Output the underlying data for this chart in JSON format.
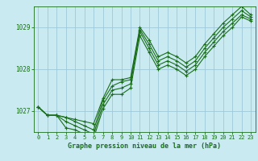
{
  "title": "Graphe pression niveau de la mer (hPa)",
  "bg_color": "#c8eaf0",
  "grid_color": "#a0c8d8",
  "line_color": "#1a6e1a",
  "text_color": "#1a6e1a",
  "xlim": [
    -0.5,
    23.5
  ],
  "ylim": [
    1026.5,
    1029.5
  ],
  "yticks": [
    1027,
    1028,
    1029
  ],
  "xticks": [
    0,
    1,
    2,
    3,
    4,
    5,
    6,
    7,
    8,
    9,
    10,
    11,
    12,
    13,
    14,
    15,
    16,
    17,
    18,
    19,
    20,
    21,
    22,
    23
  ],
  "series1": [
    1027.1,
    1026.9,
    1026.9,
    1026.85,
    1026.8,
    1026.75,
    1026.7,
    1027.3,
    1027.75,
    1027.75,
    1027.8,
    1029.0,
    1028.7,
    1028.3,
    1028.4,
    1028.3,
    1028.15,
    1028.3,
    1028.6,
    1028.85,
    1029.1,
    1029.3,
    1029.5,
    1029.3
  ],
  "series2": [
    1027.1,
    1026.9,
    1026.9,
    1026.85,
    1026.75,
    1026.65,
    1026.55,
    1027.25,
    1027.6,
    1027.7,
    1027.75,
    1028.95,
    1028.6,
    1028.2,
    1028.3,
    1028.2,
    1028.05,
    1028.2,
    1028.5,
    1028.75,
    1029.0,
    1029.2,
    1029.4,
    1029.25
  ],
  "series3": [
    1027.1,
    1026.9,
    1026.9,
    1026.75,
    1026.65,
    1026.55,
    1026.45,
    1027.15,
    1027.5,
    1027.55,
    1027.65,
    1028.9,
    1028.5,
    1028.1,
    1028.2,
    1028.1,
    1027.95,
    1028.1,
    1028.4,
    1028.65,
    1028.9,
    1029.1,
    1029.3,
    1029.2
  ],
  "series4": [
    1027.1,
    1026.9,
    1026.9,
    1026.6,
    1026.55,
    1026.45,
    1026.35,
    1027.05,
    1027.4,
    1027.4,
    1027.55,
    1028.8,
    1028.4,
    1028.0,
    1028.1,
    1028.0,
    1027.85,
    1028.0,
    1028.3,
    1028.55,
    1028.8,
    1029.0,
    1029.25,
    1029.15
  ]
}
